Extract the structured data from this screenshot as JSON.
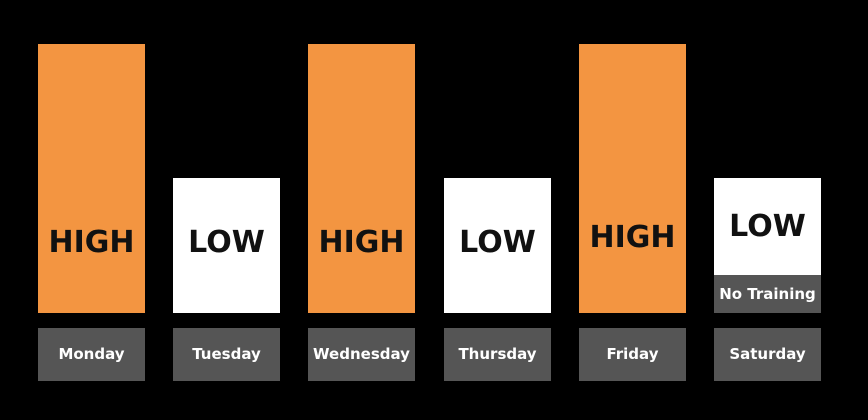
{
  "chart_data": {
    "type": "bar",
    "categories": [
      "Monday",
      "Tuesday",
      "Wednesday",
      "Thursday",
      "Friday",
      "Saturday"
    ],
    "values": [
      1,
      0.5,
      1,
      0.5,
      1,
      0.5
    ],
    "bar_labels": [
      "HIGH",
      "LOW",
      "HIGH",
      "LOW",
      "HIGH",
      "LOW"
    ],
    "notes": [
      "",
      "",
      "",
      "",
      "",
      "No Training"
    ],
    "title": "",
    "xlabel": "",
    "ylabel": "",
    "ylim": [
      0,
      1
    ],
    "grid": false,
    "legend": "none"
  },
  "colors": {
    "background": "#000000",
    "high": "#F39541",
    "low": "#FFFFFF",
    "label_box": "#555555"
  }
}
